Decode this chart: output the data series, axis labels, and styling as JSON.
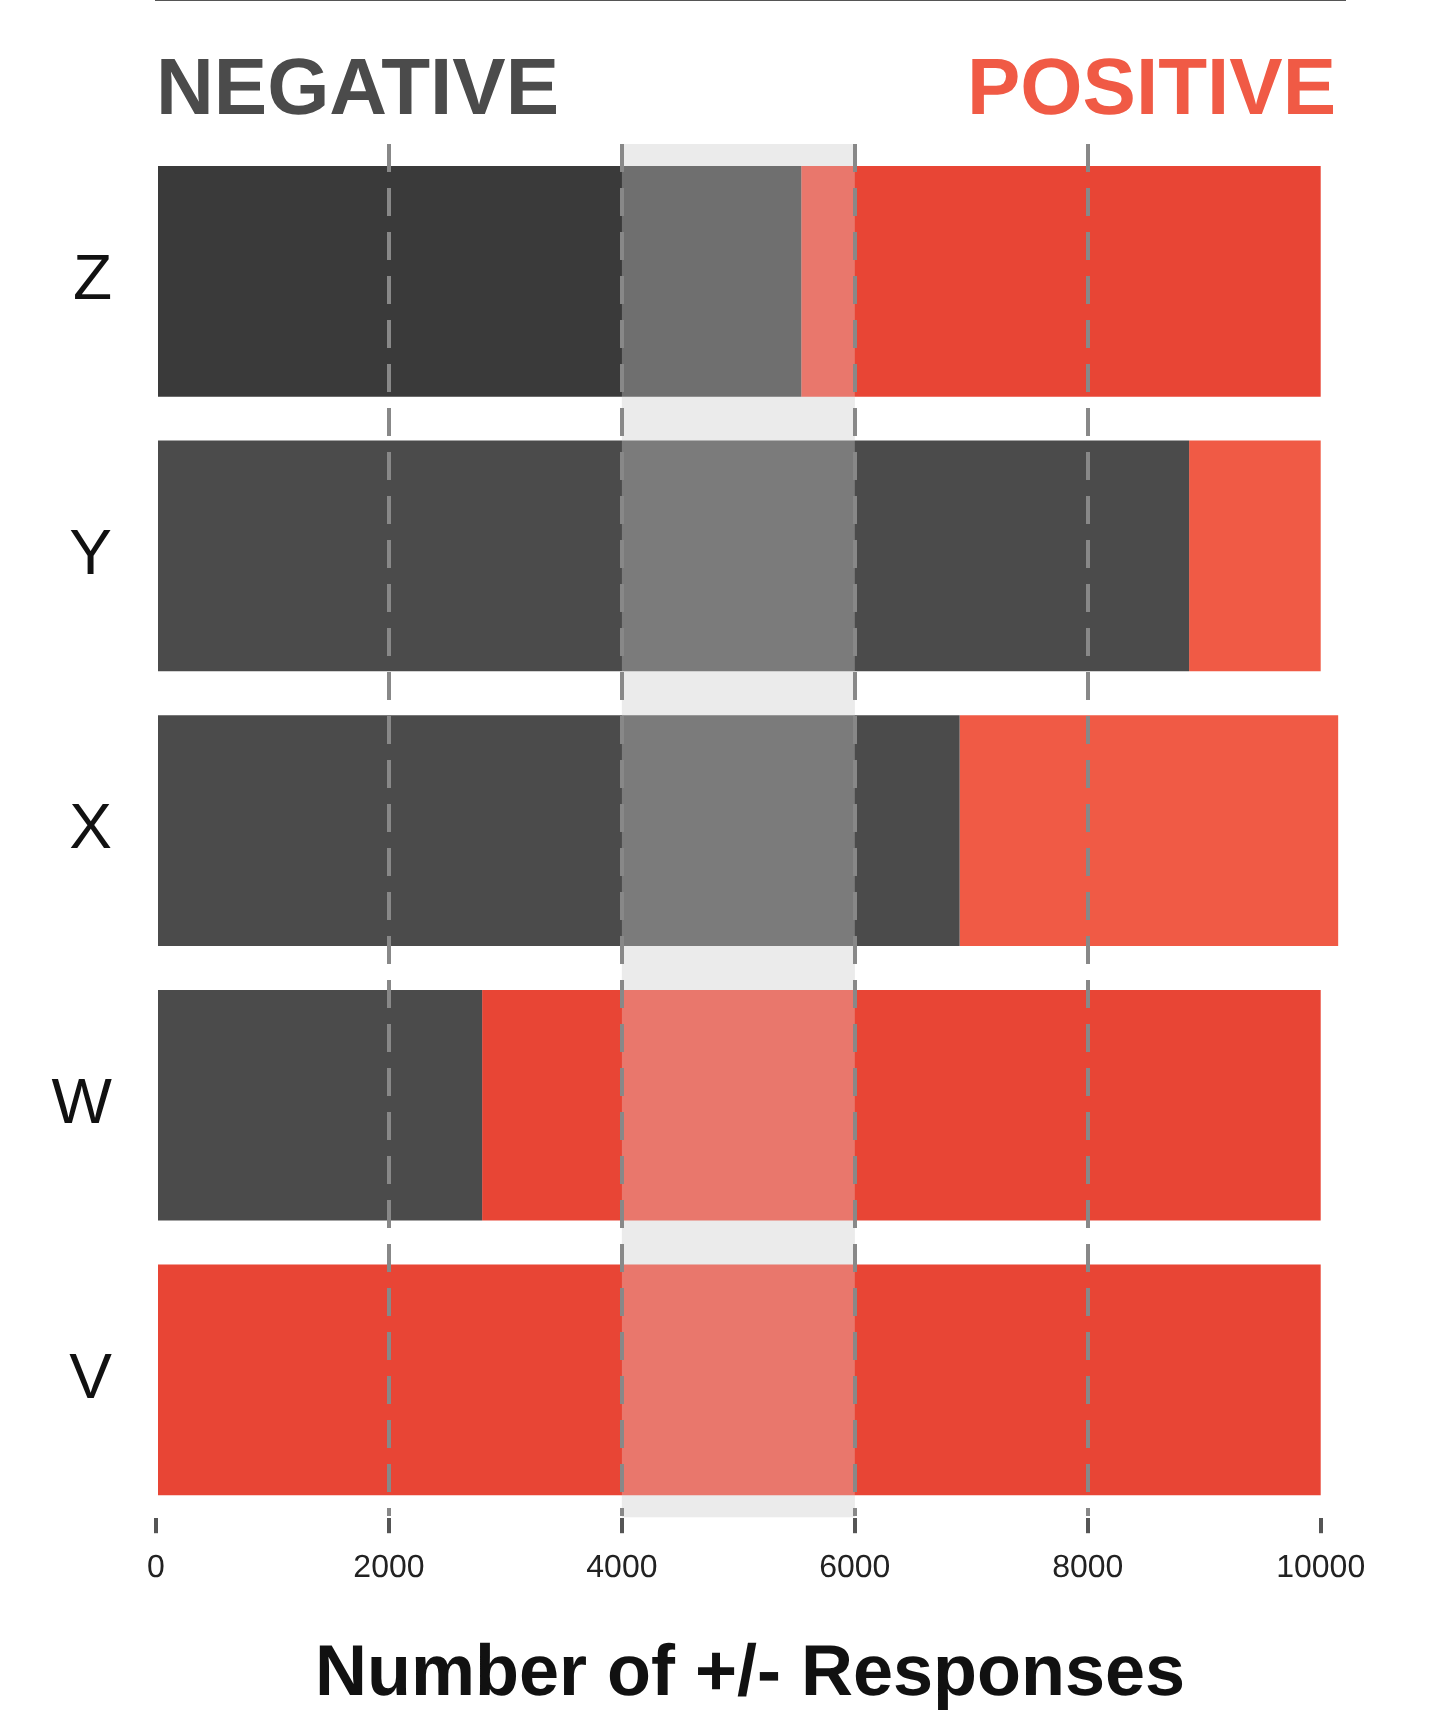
{
  "chart_data": {
    "type": "bar",
    "orientation": "horizontal",
    "stacked": true,
    "xlabel": "Number of +/- Responses",
    "categories": [
      "Z",
      "Y",
      "X",
      "W",
      "V"
    ],
    "series": [
      {
        "name": "NEGATIVE",
        "color": "#4b4b4b",
        "colors": [
          "#3a3a3a",
          "#4b4b4b",
          "#4b4b4b",
          "#4b4b4b",
          "#4b4b4b"
        ],
        "values": [
          5540,
          8870,
          6900,
          2800,
          0
        ]
      },
      {
        "name": "POSITIVE",
        "color": "#f05a45",
        "colors": [
          "#e84535",
          "#f05a45",
          "#f05a45",
          "#e84535",
          "#e84535"
        ],
        "values": [
          4460,
          1130,
          3250,
          7200,
          10000
        ]
      }
    ],
    "xlim": [
      0,
      10200
    ],
    "xticks": [
      0,
      2000,
      4000,
      6000,
      8000,
      10000
    ],
    "bands": [
      {
        "axis": "x",
        "from": 4000,
        "to": 6000,
        "color": "#ebebeb"
      }
    ],
    "grid": "x",
    "legend": "top"
  }
}
